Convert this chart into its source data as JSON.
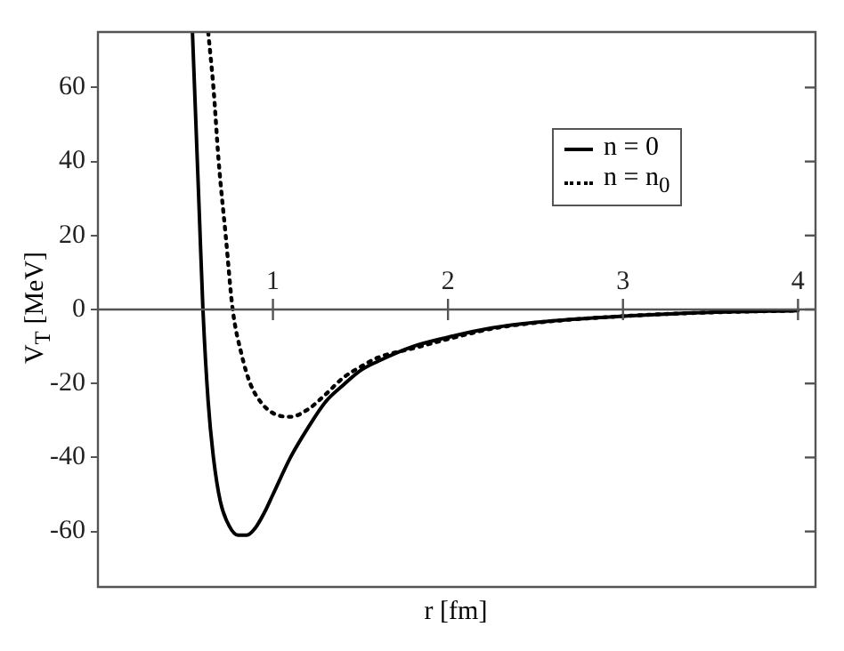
{
  "chart_data": {
    "type": "line",
    "xlabel": "r  [fm]",
    "ylabel": "V$_{T}$  [MeV]",
    "xlim": [
      0,
      4.1
    ],
    "xticks": [
      1,
      2,
      3,
      4
    ],
    "ylim": [
      -75,
      75
    ],
    "yticks": [
      -60,
      -40,
      -20,
      0,
      20,
      40,
      60
    ],
    "grid": false,
    "legend": "top right",
    "marker": "none",
    "series": [
      {
        "name": "n = 0",
        "color": "#000000",
        "line_style": "solid",
        "x": [
          0.54,
          0.56,
          0.58,
          0.6,
          0.63,
          0.66,
          0.7,
          0.75,
          0.8,
          0.85,
          0.9,
          0.95,
          1.0,
          1.1,
          1.2,
          1.3,
          1.4,
          1.5,
          1.6,
          1.8,
          2.0,
          2.25,
          2.5,
          3.0,
          3.5,
          4.0
        ],
        "values": [
          75,
          50,
          25,
          0,
          -25,
          -40,
          -52,
          -58.5,
          -61,
          -61,
          -59,
          -55,
          -50,
          -40,
          -32,
          -25,
          -20.5,
          -16.5,
          -14,
          -10,
          -7.5,
          -5,
          -3.5,
          -1.8,
          -0.8,
          -0.3
        ]
      },
      {
        "name": "n = n$_{0}$",
        "color": "#000000",
        "line_style": "dotted",
        "x": [
          0.63,
          0.66,
          0.69,
          0.73,
          0.77,
          0.82,
          0.87,
          0.93,
          1.0,
          1.1,
          1.2,
          1.3,
          1.4,
          1.5,
          1.6,
          1.8,
          2.0,
          2.25,
          2.5,
          3.0,
          3.5,
          4.0
        ],
        "values": [
          75,
          60,
          40,
          20,
          0,
          -12,
          -20,
          -25,
          -28,
          -29,
          -27,
          -23,
          -18.5,
          -15.5,
          -13,
          -10.5,
          -8,
          -5.2,
          -3.6,
          -1.8,
          -0.8,
          -0.3
        ]
      }
    ]
  }
}
